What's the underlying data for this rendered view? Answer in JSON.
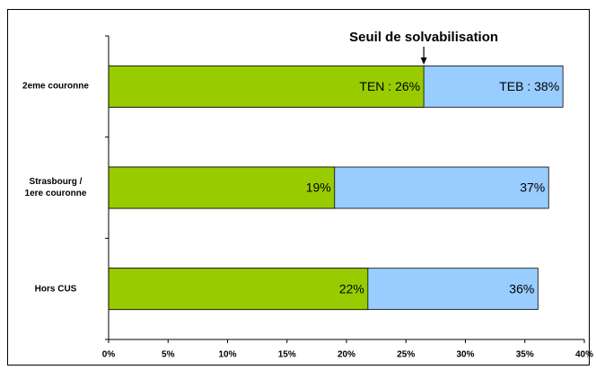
{
  "chart_data": {
    "type": "overlap_barh",
    "annotation": {
      "text": "Seuil de solvabilisation",
      "x": 26.5
    },
    "categories": [
      "2eme couronne",
      "Strasbourg /\n1ere couronne",
      "Hors CUS"
    ],
    "series": [
      {
        "color": "#99ccff",
        "values": [
          38.2,
          37.0,
          36.1
        ],
        "value_labels": [
          "TEB : 38%",
          "37%",
          "36%"
        ]
      },
      {
        "color": "#99cc00",
        "values": [
          26.5,
          19.0,
          21.8
        ],
        "value_labels": [
          "TEN : 26%",
          "19%",
          "22%"
        ]
      }
    ],
    "xlim": [
      0,
      40
    ],
    "xticks": [
      {
        "value": 0,
        "label": "0%"
      },
      {
        "value": 5,
        "label": "5%"
      },
      {
        "value": 10,
        "label": "10%"
      },
      {
        "value": 15,
        "label": "15%"
      },
      {
        "value": 20,
        "label": "20%"
      },
      {
        "value": 25,
        "label": "25%"
      },
      {
        "value": 30,
        "label": "30%"
      },
      {
        "value": 35,
        "label": "35%"
      },
      {
        "value": 40,
        "label": "40%"
      }
    ]
  }
}
